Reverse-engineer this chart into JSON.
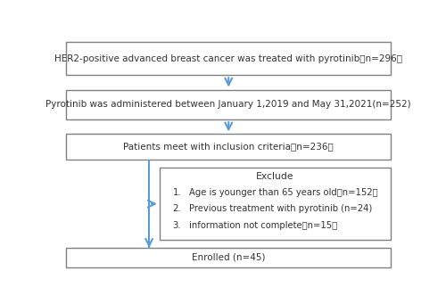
{
  "box1_text": "HER2-positive advanced breast cancer was treated with pyrotinib（n=296）",
  "box2_text": "Pyrotinib was administered between January 1,2019 and May 31,2021(n=252)",
  "box3_text": "Patients meet with inclusion criteria（n=236）",
  "box4_title": "Exclude",
  "box4_items": [
    "Age is younger than 65 years old（n=152）",
    "Previous treatment with pyrotinib (n=24)",
    "information not complete（n=15）"
  ],
  "box5_text": "Enrolled (n=45)",
  "arrow_color": "#5B9BD5",
  "box_edge_color": "#808080",
  "box_face_color": "#FFFFFF",
  "text_color": "#333333",
  "background_color": "#FFFFFF",
  "fig_width": 5.0,
  "fig_height": 3.41,
  "dpi": 100
}
